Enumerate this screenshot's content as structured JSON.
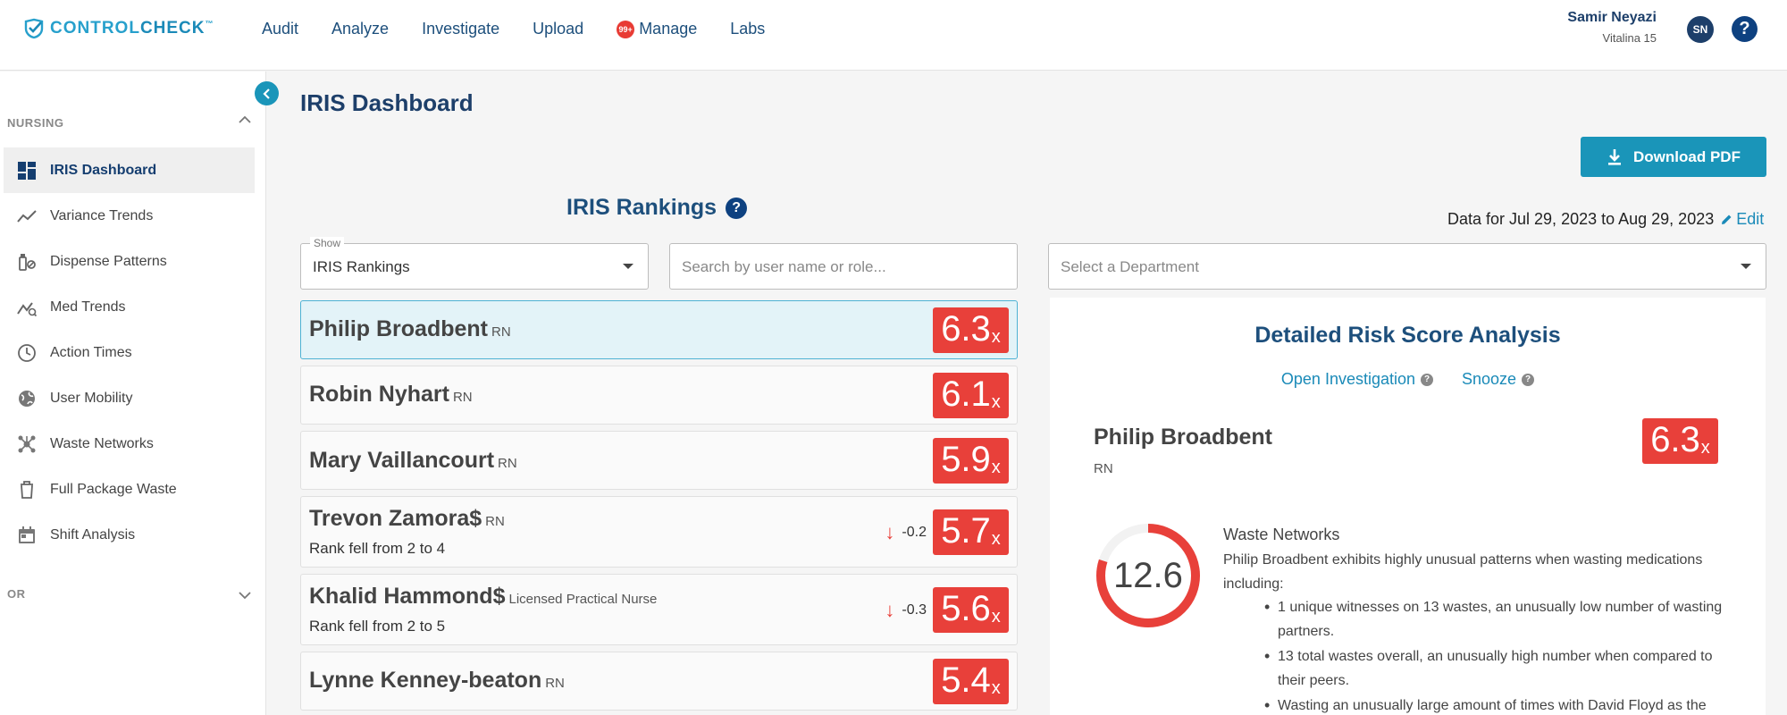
{
  "brand": {
    "name_bold": "CONTROL",
    "name_light": "CHECK",
    "tm": "™"
  },
  "nav": [
    {
      "label": "Audit"
    },
    {
      "label": "Analyze"
    },
    {
      "label": "Investigate"
    },
    {
      "label": "Upload"
    },
    {
      "label": "Manage",
      "badge": "99+"
    },
    {
      "label": "Labs"
    }
  ],
  "user": {
    "name": "Samir Neyazi",
    "facility": "Vitalina 15",
    "initials": "SN"
  },
  "sidebar": {
    "sections": [
      {
        "label": "NURSING",
        "expanded": true
      },
      {
        "label": "OR",
        "expanded": false
      }
    ],
    "items": [
      {
        "label": "IRIS Dashboard",
        "icon": "dashboard-icon",
        "active": true
      },
      {
        "label": "Variance Trends",
        "icon": "trend-line-icon"
      },
      {
        "label": "Dispense Patterns",
        "icon": "dispense-icon"
      },
      {
        "label": "Med Trends",
        "icon": "med-trend-icon"
      },
      {
        "label": "Action Times",
        "icon": "clock-icon"
      },
      {
        "label": "User Mobility",
        "icon": "globe-icon"
      },
      {
        "label": "Waste Networks",
        "icon": "network-icon"
      },
      {
        "label": "Full Package Waste",
        "icon": "trash-icon"
      },
      {
        "label": "Shift Analysis",
        "icon": "calendar-icon"
      }
    ]
  },
  "page": {
    "title": "IRIS Dashboard",
    "download_label": "Download PDF",
    "rankings_title": "IRIS Rankings",
    "date_range": "Data for Jul 29, 2023 to Aug 29, 2023",
    "edit_label": "Edit"
  },
  "filters": {
    "show_legend": "Show",
    "show_value": "IRIS Rankings",
    "search_placeholder": "Search by user name or role...",
    "department_placeholder": "Select a Department"
  },
  "rankings": [
    {
      "name": "Philip Broadbent",
      "role": "RN",
      "score": "6.3",
      "selected": true
    },
    {
      "name": "Robin Nyhart",
      "role": "RN",
      "score": "6.1"
    },
    {
      "name": "Mary Vaillancourt",
      "role": "RN",
      "score": "5.9"
    },
    {
      "name": "Trevon Zamora$",
      "role": "RN",
      "score": "5.7",
      "delta": "-0.2",
      "sub": "Rank fell from 2 to 4"
    },
    {
      "name": "Khalid Hammond$",
      "role": "Licensed Practical Nurse",
      "score": "5.6",
      "delta": "-0.3",
      "sub": "Rank fell from 2 to 5"
    },
    {
      "name": "Lynne Kenney-beaton",
      "role": "RN",
      "score": "5.4"
    }
  ],
  "score_suffix": "x",
  "detail": {
    "title": "Detailed Risk Score Analysis",
    "open_investigation": "Open Investigation",
    "snooze": "Snooze",
    "name": "Philip Broadbent",
    "role": "RN",
    "score": "6.3",
    "gauge_value": "12.6",
    "gauge_fraction": 0.8,
    "section_title": "Waste Networks",
    "description": "Philip Broadbent exhibits highly unusual patterns when wasting medications including:",
    "bullets": [
      "1 unique witnesses on 13 wastes, an unusually low number of wasting partners.",
      "13 total wastes overall, an unusually high number when compared to their peers.",
      "Wasting an unusually large amount of times with David Floyd as the"
    ]
  },
  "colors": {
    "accent": "#1a95b9",
    "navy": "#1d3f6a",
    "score_red": "#e8403a",
    "selected_bg": "#e3f3f8"
  }
}
